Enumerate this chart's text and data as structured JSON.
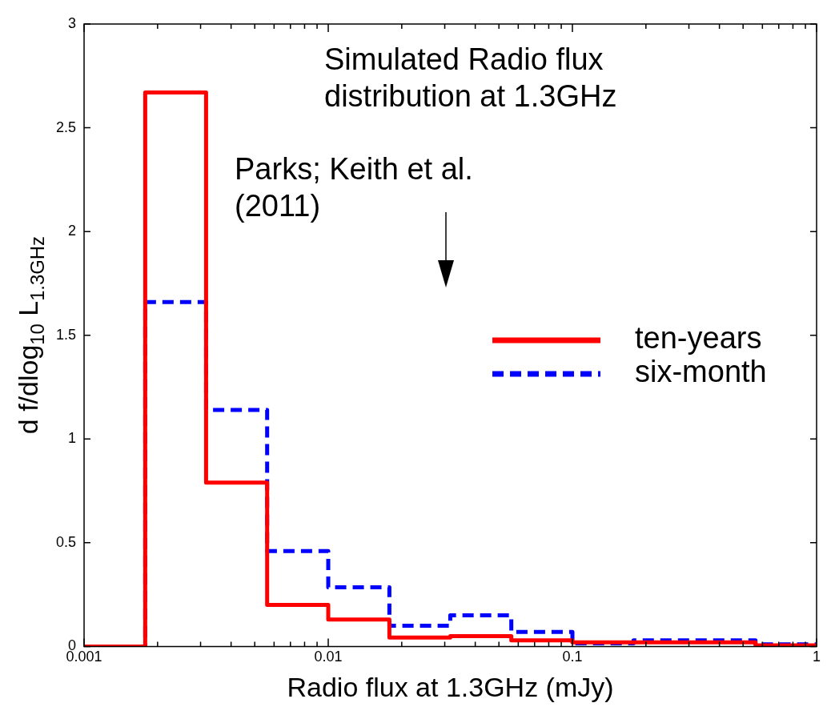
{
  "chart_data": {
    "type": "histogram",
    "title": "Simulated Radio flux distribution at 1.3GHz",
    "xlabel": "Radio flux at 1.3GHz (mJy)",
    "ylabel": "d f/dlog$_{10}$ L$_{1.3GHz}$",
    "bins": [
      0.001,
      0.00178,
      0.00316,
      0.00562,
      0.01,
      0.0178,
      0.0316,
      0.0562,
      0.1,
      0.178,
      0.316,
      0.562,
      1
    ],
    "series": [
      {
        "name": "ten-years",
        "color": "#ff0000",
        "line_style": "solid",
        "values": [
          0,
          2.67,
          0.79,
          0.2,
          0.13,
          0.043,
          0.05,
          0.03,
          0.02,
          0.02,
          0.02,
          0.005
        ]
      },
      {
        "name": "six-month",
        "color": "#0000ff",
        "line_style": "dashed",
        "values": [
          0,
          1.66,
          1.14,
          0.46,
          0.285,
          0.1,
          0.15,
          0.07,
          0.015,
          0.03,
          0.03,
          0.01
        ]
      }
    ],
    "log": "x",
    "xlim": [
      0.001,
      1
    ],
    "ylim": [
      0,
      3
    ],
    "xticks": [
      0.001,
      {
        "value": 0.002,
        "label": null
      },
      {
        "value": 0.003,
        "label": null
      },
      {
        "value": 0.004,
        "label": null
      },
      {
        "value": 0.005,
        "label": null
      },
      {
        "value": 0.006,
        "label": null
      },
      {
        "value": 0.007,
        "label": null
      },
      {
        "value": 0.008,
        "label": null
      },
      {
        "value": 0.009,
        "label": null
      },
      0.01,
      {
        "value": 0.02,
        "label": null
      },
      {
        "value": 0.03,
        "label": null
      },
      {
        "value": 0.04,
        "label": null
      },
      {
        "value": 0.05,
        "label": null
      },
      {
        "value": 0.06,
        "label": null
      },
      {
        "value": 0.07,
        "label": null
      },
      {
        "value": 0.08,
        "label": null
      },
      {
        "value": 0.09,
        "label": null
      },
      0.1,
      {
        "value": 0.2,
        "label": null
      },
      {
        "value": 0.3,
        "label": null
      },
      {
        "value": 0.4,
        "label": null
      },
      {
        "value": 0.5,
        "label": null
      },
      {
        "value": 0.6,
        "label": null
      },
      {
        "value": 0.7,
        "label": null
      },
      {
        "value": 0.8,
        "label": null
      },
      {
        "value": 0.9,
        "label": null
      },
      1
    ],
    "yticks": [
      0,
      0.5,
      1,
      1.5,
      2,
      2.5,
      3
    ],
    "annotations": [
      "Parks; Keith et al. (2011)"
    ],
    "legend": "right",
    "grid": false
  }
}
